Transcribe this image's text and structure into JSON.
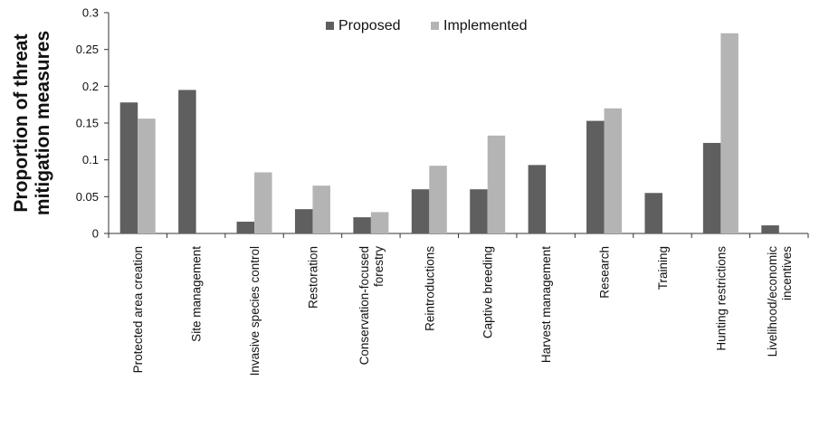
{
  "chart_data": {
    "type": "bar",
    "ylabel": [
      "Proportion of threat",
      "mitigation measures"
    ],
    "ylim": [
      0,
      0.3
    ],
    "yticks": [
      0,
      0.05,
      0.1,
      0.15,
      0.2,
      0.25,
      0.3
    ],
    "ytick_labels": [
      "0",
      "0.05",
      "0.1",
      "0.15",
      "0.2",
      "0.25",
      "0.3"
    ],
    "grid": false,
    "legend_position": "top",
    "categories": [
      [
        "Protected area creation"
      ],
      [
        "Site management"
      ],
      [
        "Invasive species control"
      ],
      [
        "Restoration"
      ],
      [
        "Conservation-focused",
        "forestry"
      ],
      [
        "Reintroductions"
      ],
      [
        "Captive breeding"
      ],
      [
        "Harvest management"
      ],
      [
        "Research"
      ],
      [
        "Training"
      ],
      [
        "Hunting restrictions"
      ],
      [
        "Livelihood/economic",
        "incentives"
      ]
    ],
    "series": [
      {
        "name": "Proposed",
        "color": "#5f5f5f",
        "values": [
          0.178,
          0.195,
          0.016,
          0.033,
          0.022,
          0.06,
          0.06,
          0.093,
          0.153,
          0.055,
          0.123,
          0.011
        ]
      },
      {
        "name": "Implemented",
        "color": "#b4b4b4",
        "values": [
          0.156,
          0,
          0.083,
          0.065,
          0.029,
          0.092,
          0.133,
          0,
          0.17,
          0,
          0.272,
          0
        ]
      }
    ]
  }
}
